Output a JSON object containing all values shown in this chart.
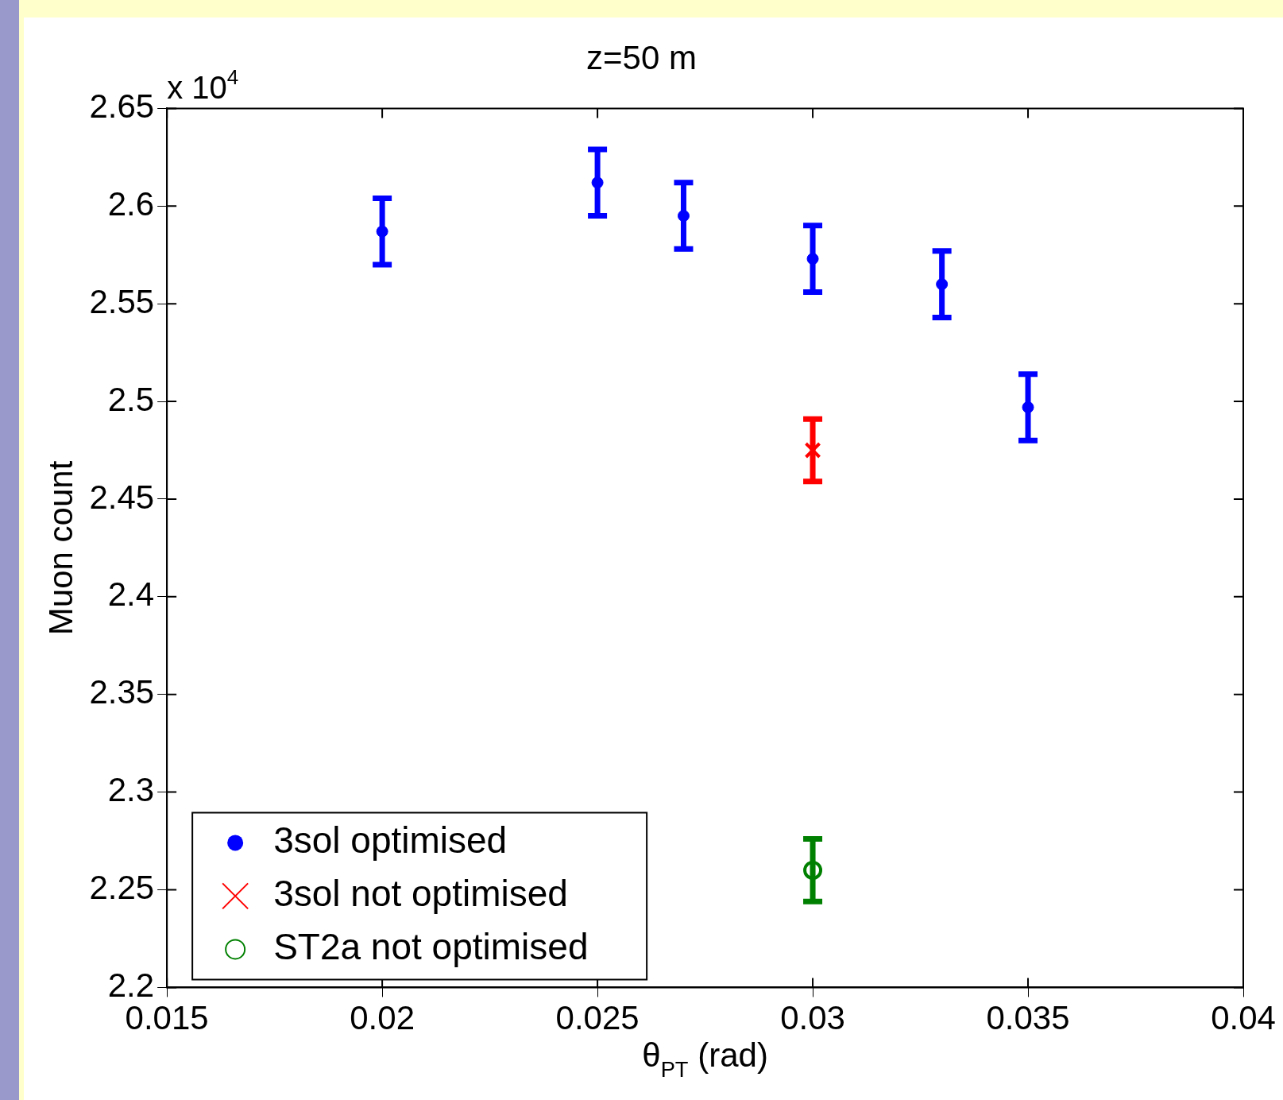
{
  "chart_data": {
    "type": "scatter",
    "title": "z=50 m",
    "xlabel": "θ$_{PT}$ (rad)",
    "ylabel": "Muon count",
    "annotations": [
      "x 10$^{4}$"
    ],
    "xlim": [
      0.015,
      0.04
    ],
    "xticks": [
      0.015,
      0.02,
      0.025,
      0.03,
      0.035,
      0.04
    ],
    "ylim": [
      2.2,
      2.65
    ],
    "yticks": [
      2.2,
      2.25,
      2.3,
      2.35,
      2.4,
      2.45,
      2.5,
      2.55,
      2.6,
      2.65
    ],
    "legend": "bottom left",
    "grid": false,
    "series": [
      {
        "name": "3sol optimised",
        "color": "#0000ff",
        "marker": "circle",
        "x": [
          0.02,
          0.025,
          0.027,
          0.03,
          0.033,
          0.035
        ],
        "values": [
          2.587,
          2.612,
          2.595,
          2.573,
          2.56,
          2.497
        ],
        "errors": [
          0.017,
          0.017,
          0.017,
          0.017,
          0.017,
          0.017
        ]
      },
      {
        "name": "3sol not optimised",
        "color": "#ff0000",
        "marker": "cross",
        "x": [
          0.03
        ],
        "values": [
          2.475
        ],
        "errors": [
          0.016
        ]
      },
      {
        "name": "ST2a not optimised",
        "color": "#008000",
        "marker": "circle_open",
        "x": [
          0.03
        ],
        "values": [
          2.26
        ],
        "errors": [
          0.016
        ]
      }
    ]
  }
}
